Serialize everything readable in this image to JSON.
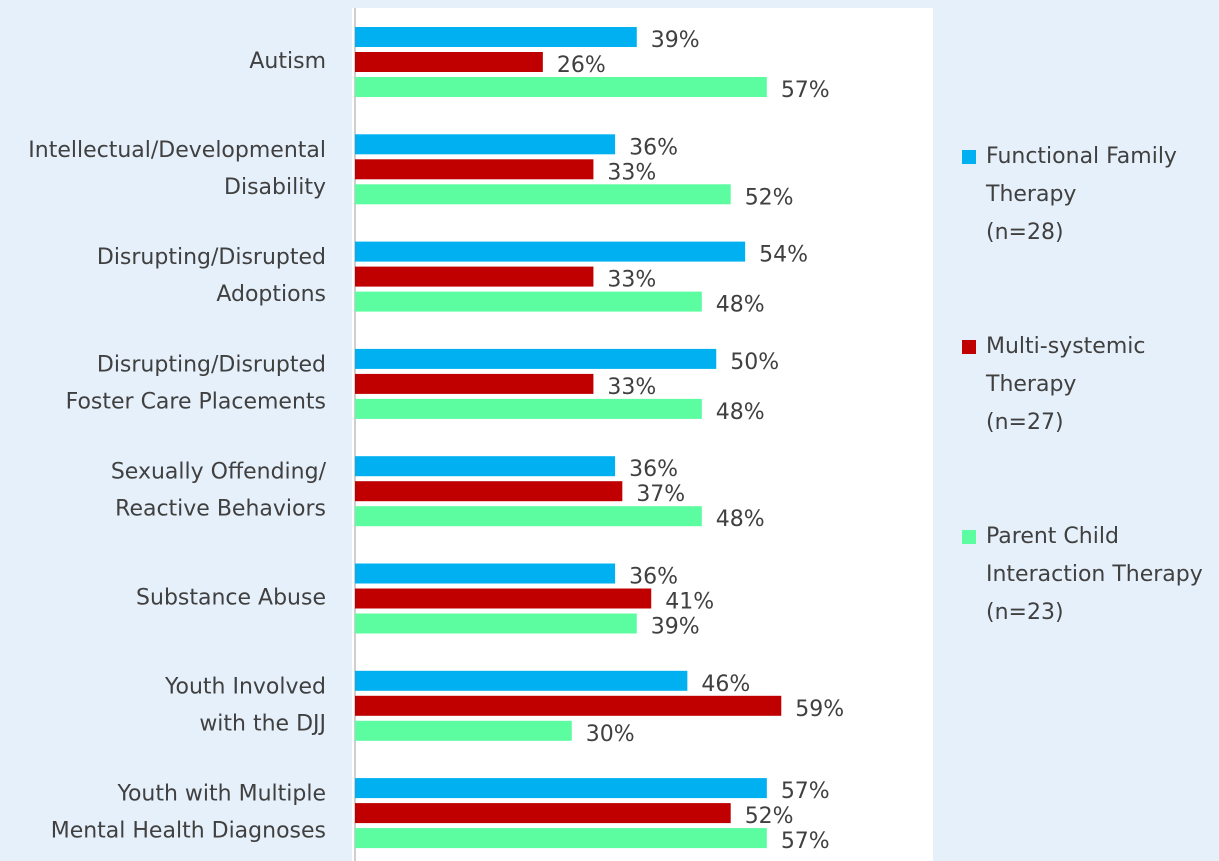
{
  "chart_data": {
    "type": "hbar",
    "categories": [
      [
        "Autism"
      ],
      [
        "Intellectual/Developmental",
        "Disability"
      ],
      [
        "Disrupting/Disrupted",
        "Adoptions"
      ],
      [
        "Disrupting/Disrupted",
        "Foster Care Placements"
      ],
      [
        "Sexually Offending/",
        "Reactive Behaviors"
      ],
      [
        "Substance Abuse"
      ],
      [
        "Youth Involved",
        "with the DJJ"
      ],
      [
        "Youth with Multiple",
        "Mental Health Diagnoses"
      ]
    ],
    "series": [
      {
        "name": [
          "Functional Family",
          "Therapy",
          "(n=28)"
        ],
        "color": "#00b0f0",
        "values": [
          39,
          36,
          54,
          50,
          36,
          36,
          46,
          57
        ],
        "value_labels": [
          "39%",
          "36%",
          "54%",
          "50%",
          "36%",
          "36%",
          "46%",
          "57%"
        ]
      },
      {
        "name": [
          "Multi-systemic",
          "Therapy",
          "(n=27)"
        ],
        "color": "#c00000",
        "values": [
          26,
          33,
          33,
          33,
          37,
          41,
          59,
          52
        ],
        "value_labels": [
          "26%",
          "33%",
          "33%",
          "33%",
          "37%",
          "41%",
          "59%",
          "52%"
        ]
      },
      {
        "name": [
          "Parent Child",
          "Interaction Therapy",
          "(n=23)"
        ],
        "color": "#5cfca0",
        "values": [
          57,
          52,
          48,
          48,
          48,
          39,
          30,
          57
        ],
        "value_labels": [
          "57%",
          "52%",
          "48%",
          "48%",
          "48%",
          "39%",
          "30%",
          "57%"
        ]
      }
    ],
    "xlim": [
      0,
      80
    ],
    "legend": "right"
  }
}
